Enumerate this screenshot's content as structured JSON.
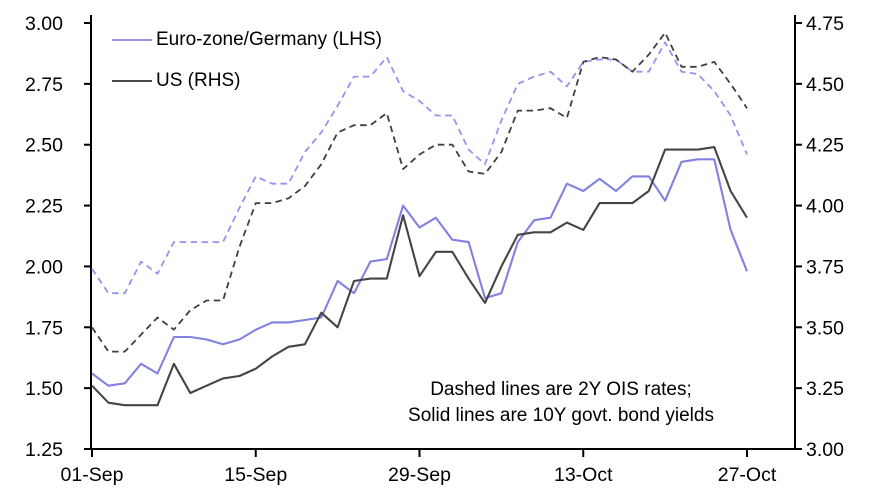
{
  "chart_data": {
    "type": "line",
    "title": "",
    "xlabel": "",
    "ylabel_left": "",
    "ylabel_right": "",
    "grid": false,
    "legend_position": "top-left-inside",
    "x_tick_labels": [
      "01-Sep",
      "15-Sep",
      "29-Sep",
      "13-Oct",
      "27-Oct"
    ],
    "dates": [
      "01-Sep",
      "04-Sep",
      "05-Sep",
      "06-Sep",
      "07-Sep",
      "08-Sep",
      "11-Sep",
      "12-Sep",
      "13-Sep",
      "14-Sep",
      "15-Sep",
      "18-Sep",
      "19-Sep",
      "20-Sep",
      "21-Sep",
      "22-Sep",
      "25-Sep",
      "26-Sep",
      "27-Sep",
      "28-Sep",
      "29-Sep",
      "02-Oct",
      "03-Oct",
      "04-Oct",
      "05-Oct",
      "06-Oct",
      "09-Oct",
      "10-Oct",
      "11-Oct",
      "12-Oct",
      "13-Oct",
      "16-Oct",
      "17-Oct",
      "18-Oct",
      "19-Oct",
      "20-Oct",
      "23-Oct",
      "24-Oct",
      "25-Oct",
      "26-Oct",
      "27-Oct"
    ],
    "left_axis": {
      "min": 1.25,
      "max": 3.0,
      "step": 0.25,
      "tick_labels": [
        "3.00",
        "2.75",
        "2.50",
        "2.25",
        "2.00",
        "1.75",
        "1.50",
        "1.25"
      ]
    },
    "right_axis": {
      "min": 3.0,
      "max": 4.75,
      "step": 0.25,
      "tick_labels": [
        "4.75",
        "4.50",
        "4.25",
        "4.00",
        "3.75",
        "3.50",
        "3.25",
        "3.00"
      ]
    },
    "series": [
      {
        "name": "Euro-zone/Germany 2Y OIS rate",
        "axis": "left",
        "style": "dashed",
        "color": "#9494ea",
        "values": [
          1.99,
          1.89,
          1.89,
          2.02,
          1.97,
          2.1,
          2.1,
          2.1,
          2.1,
          2.24,
          2.37,
          2.34,
          2.34,
          2.47,
          2.55,
          2.66,
          2.78,
          2.78,
          2.86,
          2.72,
          2.68,
          2.62,
          2.62,
          2.48,
          2.42,
          2.6,
          2.75,
          2.78,
          2.8,
          2.74,
          2.84,
          2.85,
          2.85,
          2.8,
          2.8,
          2.92,
          2.8,
          2.79,
          2.72,
          2.62,
          2.46
        ]
      },
      {
        "name": "US 2Y OIS rate",
        "axis": "right",
        "style": "dashed",
        "color": "#3f3f3f",
        "values": [
          3.5,
          3.4,
          3.4,
          3.47,
          3.54,
          3.49,
          3.57,
          3.61,
          3.61,
          3.83,
          4.01,
          4.01,
          4.03,
          4.08,
          4.17,
          4.3,
          4.33,
          4.33,
          4.38,
          4.15,
          4.21,
          4.25,
          4.25,
          4.14,
          4.13,
          4.22,
          4.39,
          4.39,
          4.4,
          4.36,
          4.59,
          4.61,
          4.6,
          4.55,
          4.62,
          4.71,
          4.57,
          4.57,
          4.59,
          4.5,
          4.4
        ]
      },
      {
        "name": "Euro-zone/Germany 10Y govt. bond yield",
        "axis": "left",
        "style": "solid",
        "color": "#8181e0",
        "values": [
          1.56,
          1.51,
          1.52,
          1.6,
          1.56,
          1.71,
          1.71,
          1.7,
          1.68,
          1.7,
          1.74,
          1.77,
          1.77,
          1.78,
          1.79,
          1.94,
          1.89,
          2.02,
          2.03,
          2.25,
          2.16,
          2.2,
          2.11,
          2.1,
          1.87,
          1.89,
          2.1,
          2.19,
          2.2,
          2.34,
          2.31,
          2.36,
          2.31,
          2.37,
          2.37,
          2.27,
          2.43,
          2.44,
          2.44,
          2.15,
          1.98
        ]
      },
      {
        "name": "US 10Y govt. bond yield",
        "axis": "right",
        "style": "solid",
        "color": "#454545",
        "values": [
          3.26,
          3.19,
          3.18,
          3.18,
          3.18,
          3.35,
          3.23,
          3.26,
          3.29,
          3.3,
          3.33,
          3.38,
          3.42,
          3.43,
          3.56,
          3.5,
          3.69,
          3.7,
          3.7,
          3.96,
          3.71,
          3.81,
          3.81,
          3.7,
          3.6,
          3.75,
          3.88,
          3.89,
          3.89,
          3.93,
          3.9,
          4.01,
          4.01,
          4.01,
          4.06,
          4.23,
          4.23,
          4.23,
          4.24,
          4.06,
          3.95
        ]
      }
    ],
    "legend": [
      {
        "label": "Euro-zone/Germany (LHS)",
        "color": "#9494ea"
      },
      {
        "label": "US (RHS)",
        "color": "#4a4a4a"
      }
    ],
    "annotation": {
      "line1": "Dashed lines are 2Y OIS rates;",
      "line2": "Solid lines are 10Y govt. bond yields"
    },
    "axis_color": "#000000",
    "background_color": "#ffffff"
  }
}
